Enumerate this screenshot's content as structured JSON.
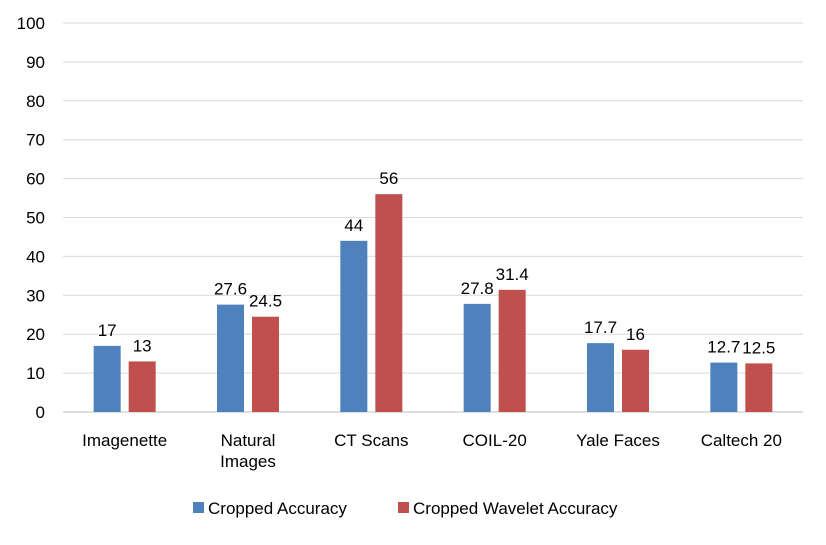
{
  "chart_data": {
    "type": "bar",
    "categories": [
      [
        "Imagenette"
      ],
      [
        "Natural",
        "Images"
      ],
      [
        "CT Scans"
      ],
      [
        "COIL-20"
      ],
      [
        "Yale Faces"
      ],
      [
        "Caltech 20"
      ]
    ],
    "series": [
      {
        "name": "Cropped Accuracy",
        "color": "#4F81BD",
        "values": [
          17,
          27.6,
          44,
          27.8,
          17.7,
          12.7
        ]
      },
      {
        "name": "Cropped Wavelet Accuracy",
        "color": "#C0504D",
        "values": [
          13,
          24.5,
          56,
          31.4,
          16,
          12.5
        ]
      }
    ],
    "ylim": [
      0,
      100
    ],
    "yticks": [
      0,
      10,
      20,
      30,
      40,
      50,
      60,
      70,
      80,
      90,
      100
    ],
    "grid": true,
    "legend": "bottom",
    "data_labels": true
  }
}
